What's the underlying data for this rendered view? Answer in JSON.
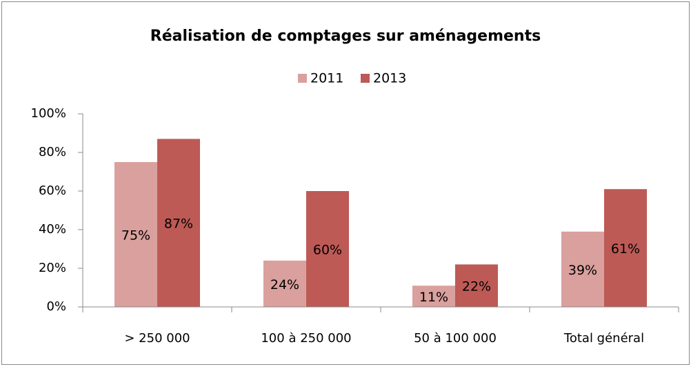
{
  "chart_data": {
    "type": "bar",
    "title": "Réalisation de comptages sur aménagements",
    "categories": [
      "> 250 000",
      "100 à 250 000",
      "50 à 100 000",
      "Total général"
    ],
    "series": [
      {
        "name": "2011",
        "color": "#d9a09d",
        "values": [
          75,
          24,
          11,
          39
        ],
        "value_labels": [
          "75%",
          "24%",
          "11%",
          "39%"
        ]
      },
      {
        "name": "2013",
        "color": "#bd5a55",
        "values": [
          87,
          60,
          22,
          61
        ],
        "value_labels": [
          "87%",
          "60%",
          "22%",
          "61%"
        ]
      }
    ],
    "ylim": [
      0,
      100
    ],
    "yticks": [
      {
        "value": 0,
        "label": "0%"
      },
      {
        "value": 20,
        "label": "20%"
      },
      {
        "value": 40,
        "label": "40%"
      },
      {
        "value": 60,
        "label": "60%"
      },
      {
        "value": 80,
        "label": "80%"
      },
      {
        "value": 100,
        "label": "100%"
      }
    ],
    "legend": "top",
    "grid": false
  }
}
